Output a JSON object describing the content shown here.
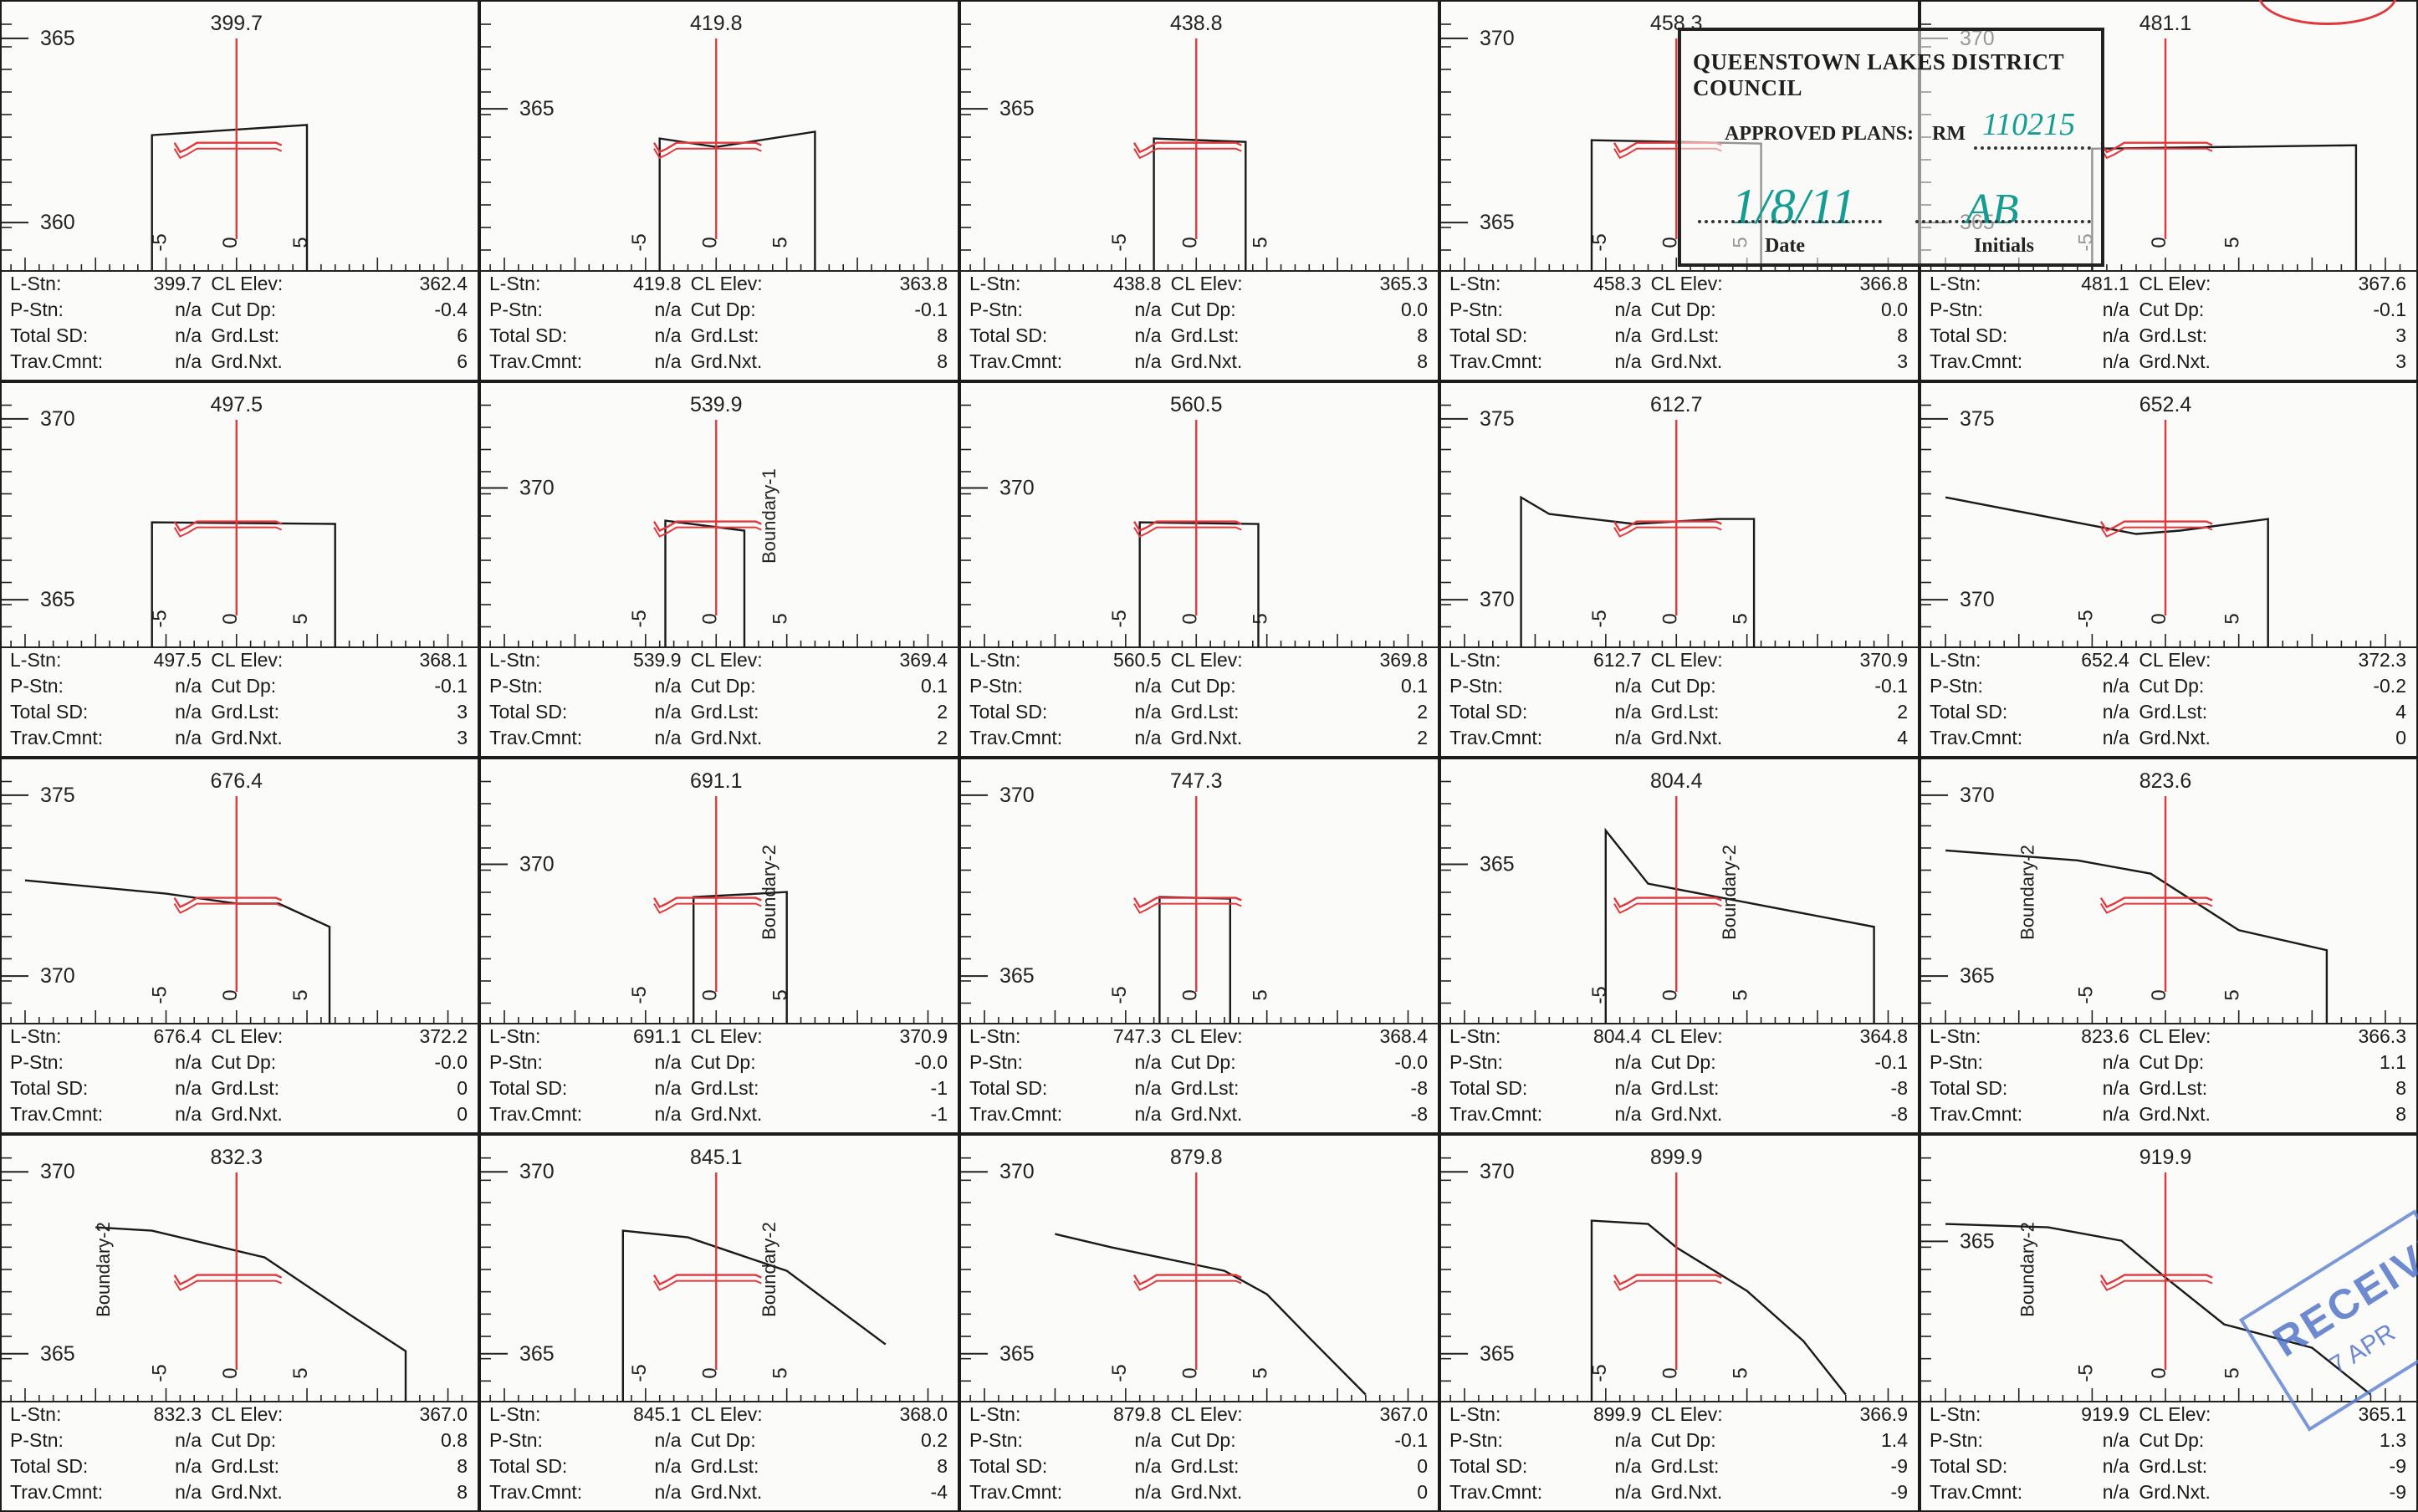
{
  "labels": {
    "l_stn": "L-Stn:",
    "p_stn": "P-Stn:",
    "total_sd": "Total SD:",
    "trav_cmnt": "Trav.Cmnt:",
    "cl_elev": "CL Elev:",
    "cut_dp": "Cut Dp:",
    "grd_lst": "Grd.Lst:",
    "grd_nxt": "Grd.Nxt."
  },
  "offset_ticks": [
    "-5",
    "0",
    "5"
  ],
  "sections": [
    {
      "station": "399.7",
      "cl_elev": "362.4",
      "cut_dp": "-0.4",
      "grd_lst": "6",
      "grd_nxt": "6",
      "p_stn": "n/a",
      "total_sd": "n/a",
      "trav_cmnt": "n/a",
      "elev_labels": [
        "365",
        "360"
      ]
    },
    {
      "station": "419.8",
      "cl_elev": "363.8",
      "cut_dp": "-0.1",
      "grd_lst": "8",
      "grd_nxt": "8",
      "p_stn": "n/a",
      "total_sd": "n/a",
      "trav_cmnt": "n/a",
      "elev_labels": [
        "365"
      ]
    },
    {
      "station": "438.8",
      "cl_elev": "365.3",
      "cut_dp": "0.0",
      "grd_lst": "8",
      "grd_nxt": "8",
      "p_stn": "n/a",
      "total_sd": "n/a",
      "trav_cmnt": "n/a",
      "elev_labels": [
        "365"
      ]
    },
    {
      "station": "458.3",
      "cl_elev": "366.8",
      "cut_dp": "0.0",
      "grd_lst": "8",
      "grd_nxt": "3",
      "p_stn": "n/a",
      "total_sd": "n/a",
      "trav_cmnt": "n/a",
      "elev_labels": [
        "370",
        "365"
      ]
    },
    {
      "station": "481.1",
      "cl_elev": "367.6",
      "cut_dp": "-0.1",
      "grd_lst": "3",
      "grd_nxt": "3",
      "p_stn": "n/a",
      "total_sd": "n/a",
      "trav_cmnt": "n/a",
      "elev_labels": [
        "370",
        "365"
      ]
    },
    {
      "station": "497.5",
      "cl_elev": "368.1",
      "cut_dp": "-0.1",
      "grd_lst": "3",
      "grd_nxt": "3",
      "p_stn": "n/a",
      "total_sd": "n/a",
      "trav_cmnt": "n/a",
      "elev_labels": [
        "370",
        "365"
      ]
    },
    {
      "station": "539.9",
      "cl_elev": "369.4",
      "cut_dp": "0.1",
      "grd_lst": "2",
      "grd_nxt": "2",
      "p_stn": "n/a",
      "total_sd": "n/a",
      "trav_cmnt": "n/a",
      "elev_labels": [
        "370"
      ],
      "boundary": "Boundary-1"
    },
    {
      "station": "560.5",
      "cl_elev": "369.8",
      "cut_dp": "0.1",
      "grd_lst": "2",
      "grd_nxt": "2",
      "p_stn": "n/a",
      "total_sd": "n/a",
      "trav_cmnt": "n/a",
      "elev_labels": [
        "370"
      ]
    },
    {
      "station": "612.7",
      "cl_elev": "370.9",
      "cut_dp": "-0.1",
      "grd_lst": "2",
      "grd_nxt": "4",
      "p_stn": "n/a",
      "total_sd": "n/a",
      "trav_cmnt": "n/a",
      "elev_labels": [
        "375",
        "370"
      ]
    },
    {
      "station": "652.4",
      "cl_elev": "372.3",
      "cut_dp": "-0.2",
      "grd_lst": "4",
      "grd_nxt": "0",
      "p_stn": "n/a",
      "total_sd": "n/a",
      "trav_cmnt": "n/a",
      "elev_labels": [
        "375",
        "370"
      ]
    },
    {
      "station": "676.4",
      "cl_elev": "372.2",
      "cut_dp": "-0.0",
      "grd_lst": "0",
      "grd_nxt": "0",
      "p_stn": "n/a",
      "total_sd": "n/a",
      "trav_cmnt": "n/a",
      "elev_labels": [
        "375",
        "370"
      ]
    },
    {
      "station": "691.1",
      "cl_elev": "370.9",
      "cut_dp": "-0.0",
      "grd_lst": "-1",
      "grd_nxt": "-1",
      "p_stn": "n/a",
      "total_sd": "n/a",
      "trav_cmnt": "n/a",
      "elev_labels": [
        "370"
      ],
      "boundary": "Boundary-2"
    },
    {
      "station": "747.3",
      "cl_elev": "368.4",
      "cut_dp": "-0.0",
      "grd_lst": "-8",
      "grd_nxt": "-8",
      "p_stn": "n/a",
      "total_sd": "n/a",
      "trav_cmnt": "n/a",
      "elev_labels": [
        "370",
        "365"
      ]
    },
    {
      "station": "804.4",
      "cl_elev": "364.8",
      "cut_dp": "-0.1",
      "grd_lst": "-8",
      "grd_nxt": "-8",
      "p_stn": "n/a",
      "total_sd": "n/a",
      "trav_cmnt": "n/a",
      "elev_labels": [
        "365"
      ],
      "boundary": "Boundary-2"
    },
    {
      "station": "823.6",
      "cl_elev": "366.3",
      "cut_dp": "1.1",
      "grd_lst": "8",
      "grd_nxt": "8",
      "p_stn": "n/a",
      "total_sd": "n/a",
      "trav_cmnt": "n/a",
      "elev_labels": [
        "370",
        "365"
      ],
      "boundary": "Boundary-2"
    },
    {
      "station": "832.3",
      "cl_elev": "367.0",
      "cut_dp": "0.8",
      "grd_lst": "8",
      "grd_nxt": "8",
      "p_stn": "n/a",
      "total_sd": "n/a",
      "trav_cmnt": "n/a",
      "elev_labels": [
        "370",
        "365"
      ],
      "boundary": "Boundary-2"
    },
    {
      "station": "845.1",
      "cl_elev": "368.0",
      "cut_dp": "0.2",
      "grd_lst": "8",
      "grd_nxt": "-4",
      "p_stn": "n/a",
      "total_sd": "n/a",
      "trav_cmnt": "n/a",
      "elev_labels": [
        "370",
        "365"
      ],
      "boundary": "Boundary-2"
    },
    {
      "station": "879.8",
      "cl_elev": "367.0",
      "cut_dp": "-0.1",
      "grd_lst": "0",
      "grd_nxt": "0",
      "p_stn": "n/a",
      "total_sd": "n/a",
      "trav_cmnt": "n/a",
      "elev_labels": [
        "370",
        "365"
      ]
    },
    {
      "station": "899.9",
      "cl_elev": "366.9",
      "cut_dp": "1.4",
      "grd_lst": "-9",
      "grd_nxt": "-9",
      "p_stn": "n/a",
      "total_sd": "n/a",
      "trav_cmnt": "n/a",
      "elev_labels": [
        "370",
        "365"
      ]
    },
    {
      "station": "919.9",
      "cl_elev": "365.1",
      "cut_dp": "1.3",
      "grd_lst": "-9",
      "grd_nxt": "-9",
      "p_stn": "n/a",
      "total_sd": "n/a",
      "trav_cmnt": "n/a",
      "elev_labels": [
        "365"
      ],
      "boundary": "Boundary-2"
    }
  ],
  "stamp": {
    "council": "QUEENSTOWN LAKES DISTRICT COUNCIL",
    "approved": "APPROVED PLANS:",
    "rm": "RM",
    "rm_number": "110215",
    "date_label": "Date",
    "date_value": "1/8/11",
    "initials_label": "Initials",
    "initials_value": "AB"
  },
  "received_stamp": {
    "text": "RECEIVED",
    "date": "7 APR"
  }
}
